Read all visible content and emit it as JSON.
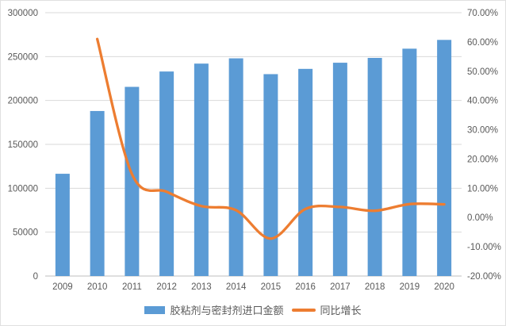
{
  "chart_data": {
    "type": "combo",
    "subtype": "bar+line",
    "title": "",
    "categories": [
      "2009",
      "2010",
      "2011",
      "2012",
      "2013",
      "2014",
      "2015",
      "2016",
      "2017",
      "2018",
      "2019",
      "2020"
    ],
    "series": [
      {
        "name": "胶粘剂与密封剂进口金额",
        "type": "bar",
        "axis": "left",
        "color": "#5B9BD5",
        "values": [
          116500,
          188000,
          215500,
          233000,
          242000,
          248000,
          230000,
          236000,
          243000,
          248500,
          259000,
          269000
        ]
      },
      {
        "name": "同比增长",
        "type": "line",
        "axis": "right",
        "color": "#ED7D31",
        "values": [
          null,
          61.0,
          14.8,
          8.8,
          3.9,
          2.5,
          -7.2,
          2.9,
          3.6,
          2.3,
          4.6,
          4.5
        ]
      }
    ],
    "left_axis": {
      "min": 0,
      "max": 300000,
      "step": 50000,
      "tick_labels": [
        "0",
        "50000",
        "100000",
        "150000",
        "200000",
        "250000",
        "300000"
      ]
    },
    "right_axis": {
      "min": -20,
      "max": 70,
      "step": 10,
      "tick_labels": [
        "-20.00%",
        "-10.00%",
        "0.00%",
        "10.00%",
        "20.00%",
        "30.00%",
        "40.00%",
        "50.00%",
        "60.00%",
        "70.00%"
      ]
    },
    "legend": {
      "position": "bottom",
      "entries": [
        {
          "label": "胶粘剂与密封剂进口金额",
          "swatch": "bar",
          "color": "#5B9BD5"
        },
        {
          "label": "同比增长",
          "swatch": "line",
          "color": "#ED7D31"
        }
      ]
    },
    "grid": true,
    "style": {
      "gridline_color": "#d9d9d9",
      "axis_line_color": "#bfbfbf",
      "tick_label_color": "#595959",
      "background": "#ffffff"
    }
  }
}
